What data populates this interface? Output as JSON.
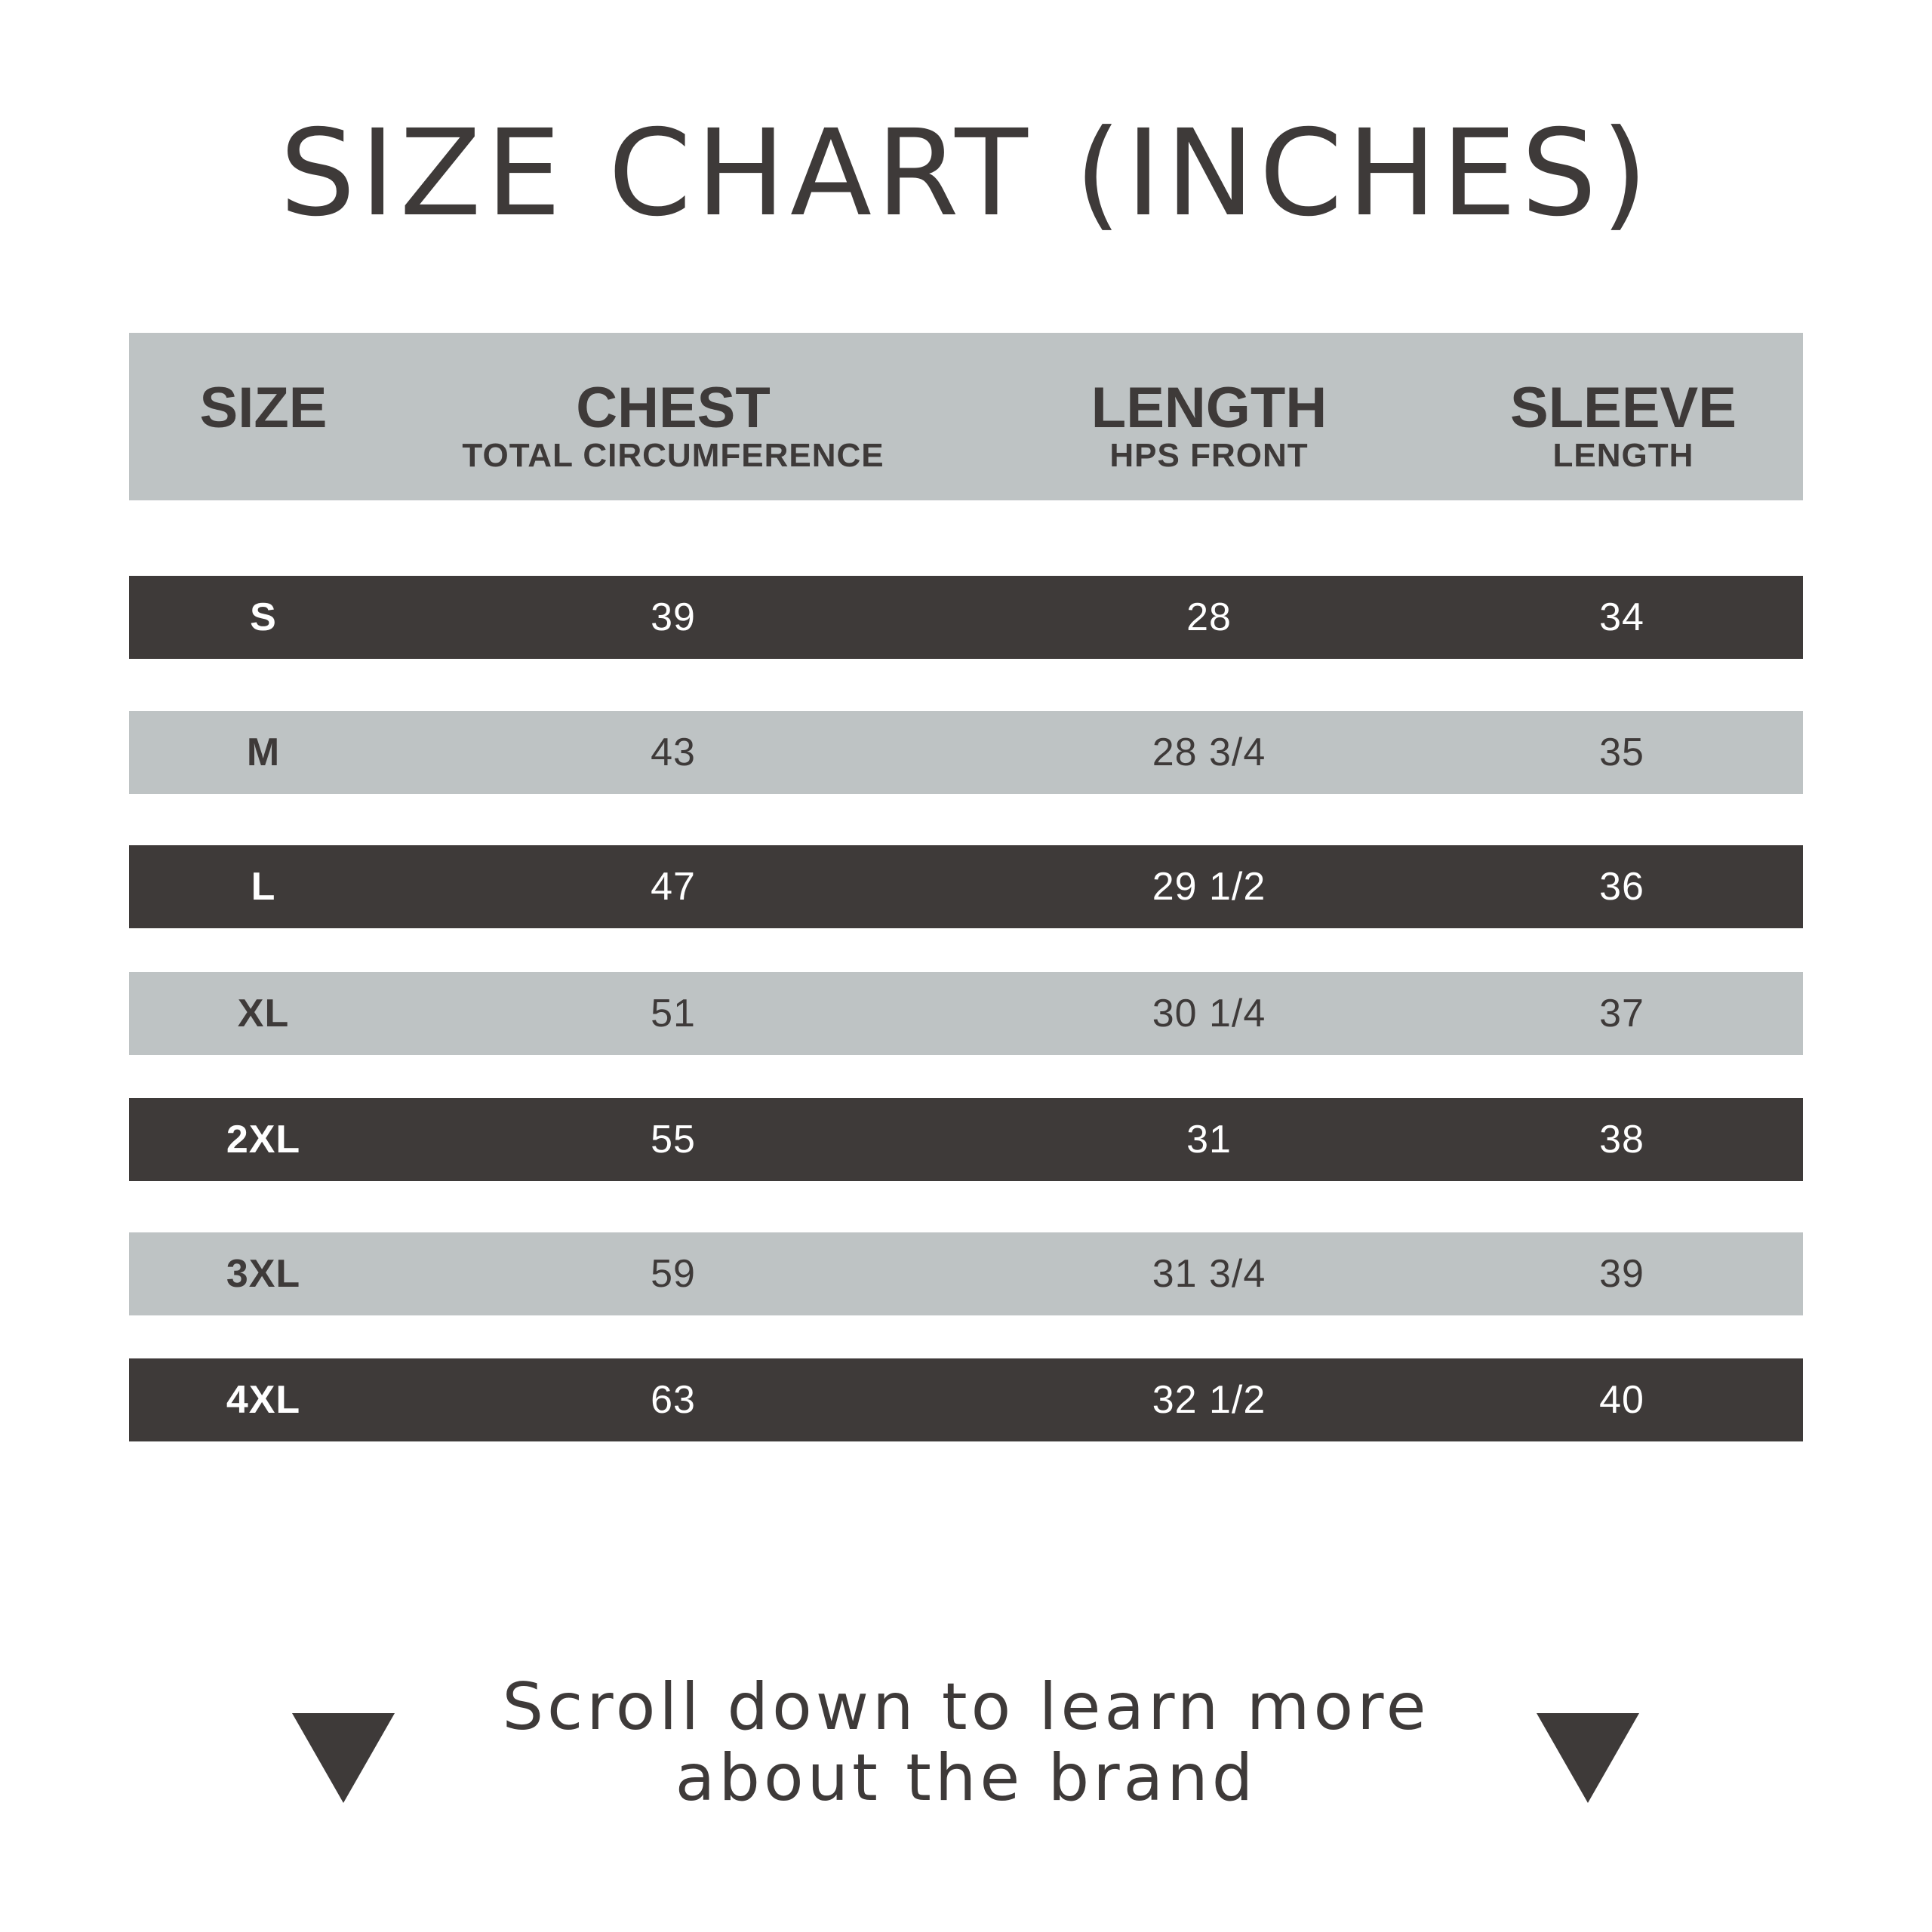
{
  "title": "SIZE CHART (INCHES)",
  "columns": [
    {
      "label": "SIZE",
      "sub": ""
    },
    {
      "label": "CHEST",
      "sub": "TOTAL CIRCUMFERENCE"
    },
    {
      "label": "LENGTH",
      "sub": "HPS FRONT"
    },
    {
      "label": "SLEEVE",
      "sub": "LENGTH"
    }
  ],
  "rows": [
    {
      "size": "S",
      "chest": "39",
      "length": "28",
      "sleeve": "34"
    },
    {
      "size": "M",
      "chest": "43",
      "length": "28 3/4",
      "sleeve": "35"
    },
    {
      "size": "L",
      "chest": "47",
      "length": "29 1/2",
      "sleeve": "36"
    },
    {
      "size": "XL",
      "chest": "51",
      "length": "30 1/4",
      "sleeve": "37"
    },
    {
      "size": "2XL",
      "chest": "55",
      "length": "31",
      "sleeve": "38"
    },
    {
      "size": "3XL",
      "chest": "59",
      "length": "31 3/4",
      "sleeve": "39"
    },
    {
      "size": "4XL",
      "chest": "63",
      "length": "32 1/2",
      "sleeve": "40"
    }
  ],
  "footer": {
    "line1": "Scroll down to learn more",
    "line2": "about the brand",
    "icon": "triangle-down-icon"
  },
  "colors": {
    "dark": "#3e3a39",
    "light": "#bec3c4",
    "background": "#ffffff"
  }
}
